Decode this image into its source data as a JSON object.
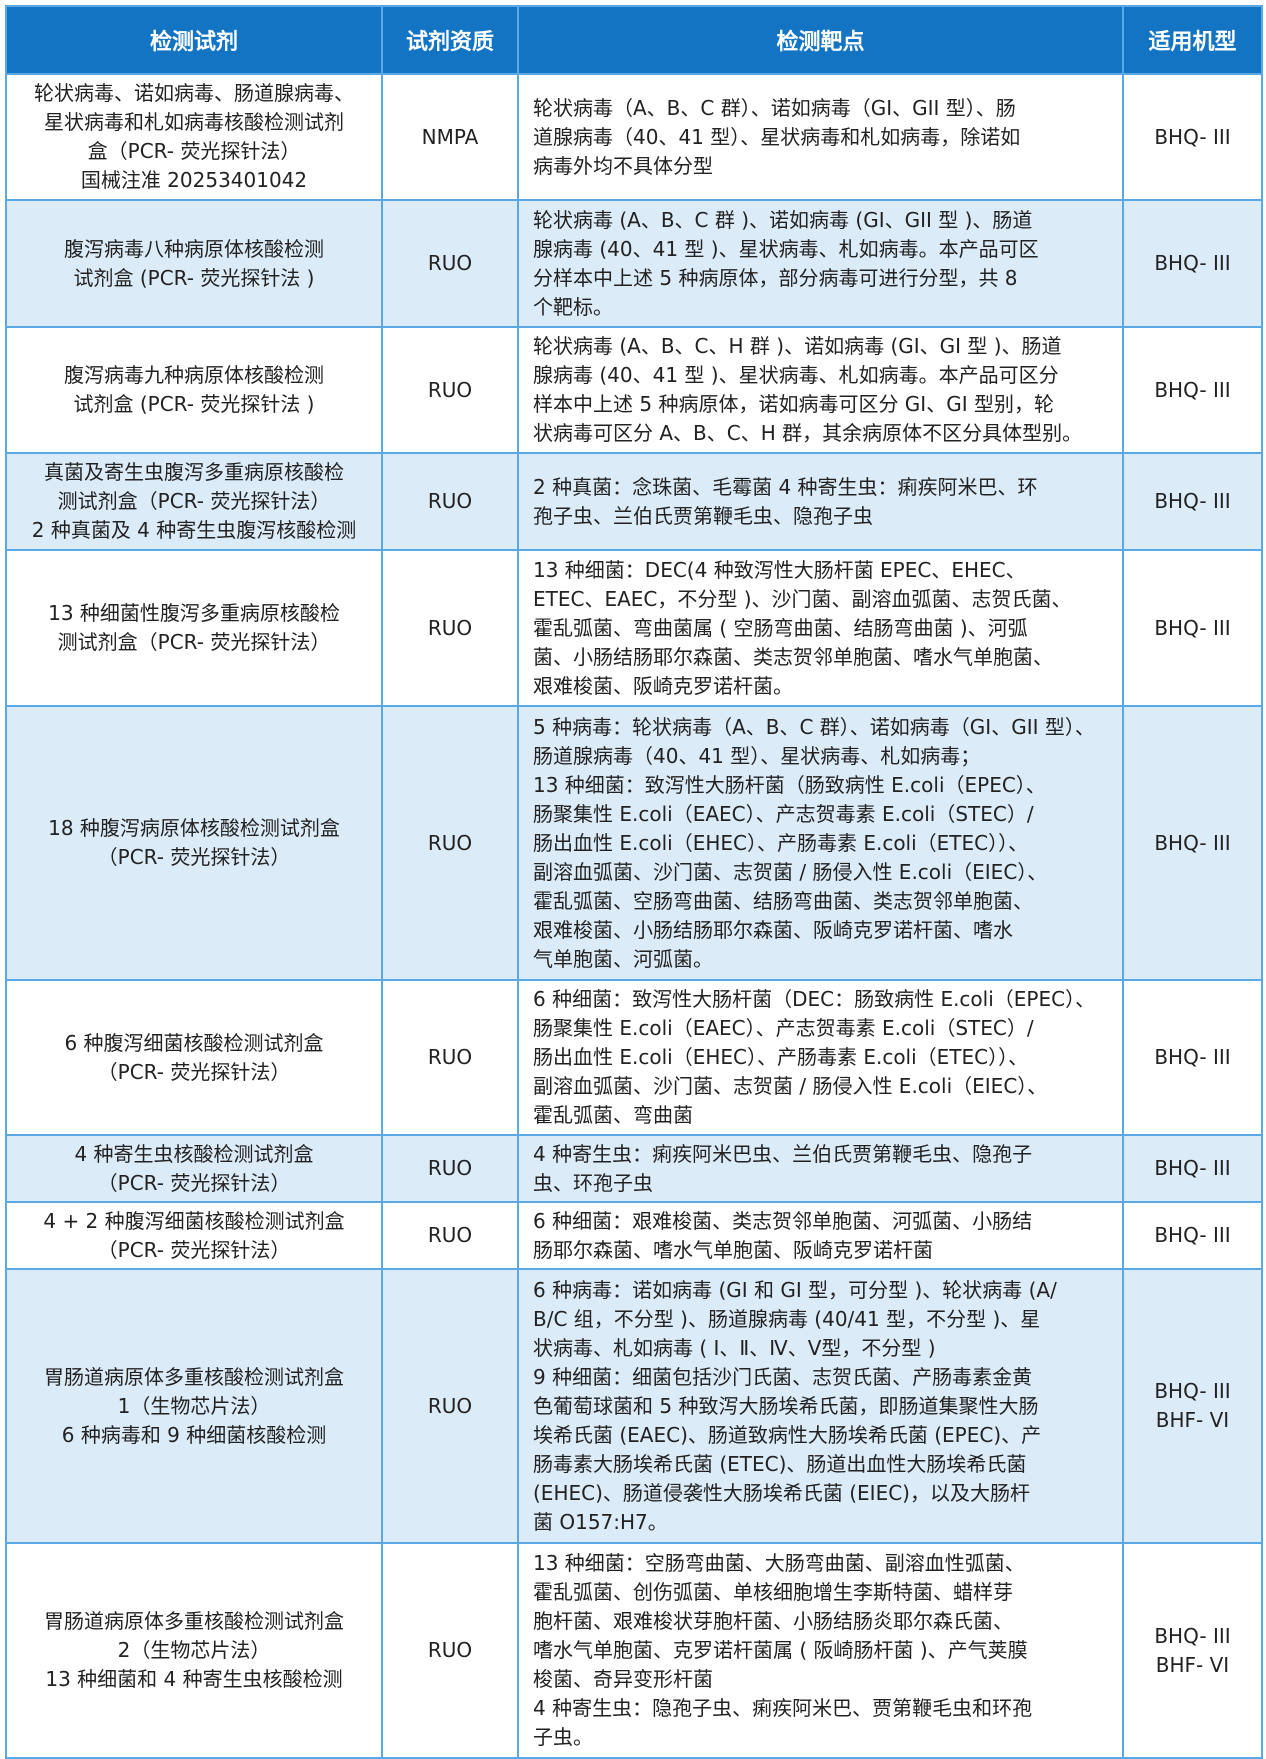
{
  "header": {
    "reagent": "检测试剂",
    "qualification": "试剂资质",
    "target": "检测靶点",
    "model": "适用机型"
  },
  "colors": {
    "header_bg": "#1474c4",
    "alt_row_bg": "#dcebf8",
    "border": "#5aa8e6"
  },
  "rows": [
    {
      "reagent": "轮状病毒、诺如病毒、肠道腺病毒、\n星状病毒和札如病毒核酸检测试剂\n盒（PCR- 荧光探针法）\n国械注准 20253401042",
      "qualification": "NMPA",
      "target": "轮状病毒（A、B、C 群）、诺如病毒（GI、GII 型）、肠\n道腺病毒（40、41 型）、星状病毒和札如病毒，除诺如\n病毒外均不具体分型",
      "model": "BHQ- III"
    },
    {
      "reagent": "腹泻病毒八种病原体核酸检测\n试剂盒 (PCR- 荧光探针法 )",
      "qualification": "RUO",
      "target": "轮状病毒 (A、B、C 群 )、诺如病毒 (GI、GII 型 )、肠道\n腺病毒 (40、41 型 )、星状病毒、札如病毒。本产品可区\n分样本中上述 5 种病原体，部分病毒可进行分型，共 8\n个靶标。",
      "model": "BHQ- III"
    },
    {
      "reagent": "腹泻病毒九种病原体核酸检测\n试剂盒 (PCR- 荧光探针法 )",
      "qualification": "RUO",
      "target": "轮状病毒 (A、B、C、H 群 )、诺如病毒 (GI、GI 型 )、肠道\n腺病毒 (40、41 型 )、星状病毒、札如病毒。本产品可区分\n样本中上述 5 种病原体，诺如病毒可区分 GI、GI 型别，轮\n状病毒可区分 A、B、C、H 群，其余病原体不区分具体型别。",
      "model": "BHQ- III"
    },
    {
      "reagent": "真菌及寄生虫腹泻多重病原核酸检\n测试剂盒（PCR- 荧光探针法）\n2 种真菌及 4 种寄生虫腹泻核酸检测",
      "qualification": "RUO",
      "target": "2 种真菌：念珠菌、毛霉菌 4 种寄生虫：痢疾阿米巴、环\n孢子虫、兰伯氏贾第鞭毛虫、隐孢子虫",
      "model": "BHQ- III"
    },
    {
      "reagent": "13 种细菌性腹泻多重病原核酸检\n测试剂盒（PCR- 荧光探针法）",
      "qualification": "RUO",
      "target": "13 种细菌：DEC(4 种致泻性大肠杆菌 EPEC、EHEC、\nETEC、EAEC，不分型 )、沙门菌、副溶血弧菌、志贺氏菌、\n霍乱弧菌、弯曲菌属 ( 空肠弯曲菌、结肠弯曲菌 )、河弧\n菌、小肠结肠耶尔森菌、类志贺邻单胞菌、嗜水气单胞菌、\n艰难梭菌、阪崎克罗诺杆菌。",
      "model": "BHQ- III"
    },
    {
      "reagent": "18 种腹泻病原体核酸检测试剂盒\n（PCR- 荧光探针法）",
      "qualification": "RUO",
      "target": "5 种病毒：轮状病毒（A、B、C 群）、诺如病毒（GI、GII 型）、\n肠道腺病毒（40、41 型）、星状病毒、札如病毒；\n13 种细菌：致泻性大肠杆菌（肠致病性 E.coli（EPEC）、\n肠聚集性 E.coli（EAEC）、产志贺毒素 E.coli（STEC）/\n肠出血性 E.coli（EHEC）、产肠毒素 E.coli（ETEC））、\n副溶血弧菌、沙门菌、志贺菌 / 肠侵入性 E.coli（EIEC）、\n霍乱弧菌、空肠弯曲菌、结肠弯曲菌、类志贺邻单胞菌、\n艰难梭菌、小肠结肠耶尔森菌、阪崎克罗诺杆菌、嗜水\n气单胞菌、河弧菌。",
      "model": "BHQ- III"
    },
    {
      "reagent": "6 种腹泻细菌核酸检测试剂盒\n（PCR- 荧光探针法）",
      "qualification": "RUO",
      "target": "6 种细菌：致泻性大肠杆菌（DEC：肠致病性 E.coli（EPEC）、\n肠聚集性 E.coli（EAEC）、产志贺毒素 E.coli（STEC）/\n肠出血性 E.coli（EHEC）、产肠毒素 E.coli（ETEC））、\n副溶血弧菌、沙门菌、志贺菌 / 肠侵入性 E.coli（EIEC）、\n霍乱弧菌、弯曲菌",
      "model": "BHQ- III"
    },
    {
      "reagent": "4 种寄生虫核酸检测试剂盒\n（PCR- 荧光探针法）",
      "qualification": "RUO",
      "target": "4 种寄生虫：痢疾阿米巴虫、兰伯氏贾第鞭毛虫、隐孢子\n虫、环孢子虫",
      "model": "BHQ- III"
    },
    {
      "reagent": "4 + 2 种腹泻细菌核酸检测试剂盒\n（PCR- 荧光探针法）",
      "qualification": "RUO",
      "target": "6 种细菌：艰难梭菌、类志贺邻单胞菌、河弧菌、小肠结\n肠耶尔森菌、嗜水气单胞菌、阪崎克罗诺杆菌",
      "model": "BHQ- III"
    },
    {
      "reagent": "胃肠道病原体多重核酸检测试剂盒\n1（生物芯片法）\n6 种病毒和 9 种细菌核酸检测",
      "qualification": "RUO",
      "target": "6 种病毒：诺如病毒 (GI 和 GI 型，可分型 )、轮状病毒 (A/\nB/C 组，不分型 )、肠道腺病毒 (40/41 型，不分型 )、星\n状病毒、札如病毒 ( Ⅰ、Ⅱ、Ⅳ、Ⅴ型，不分型 )\n9 种细菌：细菌包括沙门氏菌、志贺氏菌、产肠毒素金黄\n色葡萄球菌和 5 种致泻大肠埃希氏菌，即肠道集聚性大肠\n埃希氏菌 (EAEC)、肠道致病性大肠埃希氏菌 (EPEC)、产\n肠毒素大肠埃希氏菌 (ETEC)、肠道出血性大肠埃希氏菌\n(EHEC)、肠道侵袭性大肠埃希氏菌 (EIEC)，以及大肠杆\n菌 O157:H7。",
      "model": "BHQ- III\nBHF- VI"
    },
    {
      "reagent": "胃肠道病原体多重核酸检测试剂盒\n2（生物芯片法）\n13 种细菌和 4 种寄生虫核酸检测",
      "qualification": "RUO",
      "target": "13 种细菌：空肠弯曲菌、大肠弯曲菌、副溶血性弧菌、\n霍乱弧菌、创伤弧菌、单核细胞增生李斯特菌、蜡样芽\n胞杆菌、艰难梭状芽胞杆菌、小肠结肠炎耶尔森氏菌、\n嗜水气单胞菌、克罗诺杆菌属 ( 阪崎肠杆菌 )、产气荚膜\n梭菌、奇异变形杆菌\n4 种寄生虫：隐孢子虫、痢疾阿米巴、贾第鞭毛虫和环孢\n子虫。",
      "model": "BHQ- III\nBHF- VI"
    }
  ]
}
